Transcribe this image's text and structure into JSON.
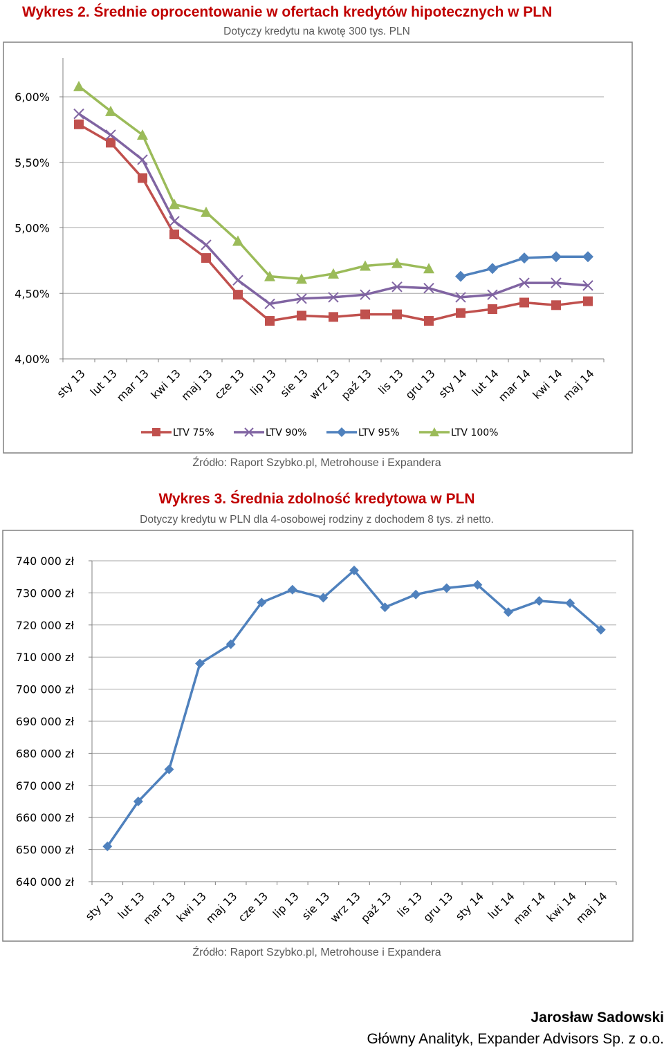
{
  "charts": [
    {
      "title": "Wykres 2. Średnie oprocentowanie w ofertach kredytów hipotecznych w PLN",
      "subtitle": "Dotyczy kredytu na kwotę 300 tys. PLN",
      "source": "Źródło: Raport Szybko.pl, Metrohouse i Expandera"
    },
    {
      "title": "Wykres 3. Średnia zdolność kredytowa w PLN",
      "subtitle": "Dotyczy kredytu w PLN dla 4-osobowej rodziny z dochodem 8 tys. zł netto.",
      "source": "Źródło: Raport Szybko.pl, Metrohouse i Expandera"
    }
  ],
  "author": {
    "name": "Jarosław Sadowski",
    "role": "Główny Analityk, Expander Advisors Sp. z o.o."
  },
  "chart_data": [
    {
      "type": "line",
      "title": "Wykres 2. Średnie oprocentowanie w ofertach kredytów hipotecznych w PLN",
      "subtitle": "Dotyczy kredytu na kwotę 300 tys. PLN",
      "categories": [
        "sty 13",
        "lut 13",
        "mar 13",
        "kwi 13",
        "maj 13",
        "cze 13",
        "lip 13",
        "sie 13",
        "wrz 13",
        "paź 13",
        "lis 13",
        "gru 13",
        "sty 14",
        "lut 14",
        "mar 14",
        "kwi 14",
        "maj 14"
      ],
      "ylim": [
        4.0,
        6.0
      ],
      "yticks": [
        4.0,
        4.5,
        5.0,
        5.5,
        6.0
      ],
      "ytick_labels": [
        "4,00%",
        "4,50%",
        "5,00%",
        "5,50%",
        "6,00%"
      ],
      "grid": true,
      "legend": "bottom",
      "series": [
        {
          "name": "LTV 75%",
          "color": "#c0504d",
          "marker": "square",
          "values": [
            5.79,
            5.65,
            5.38,
            4.95,
            4.77,
            4.49,
            4.29,
            4.33,
            4.32,
            4.34,
            4.34,
            4.29,
            4.35,
            4.38,
            4.43,
            4.41,
            4.44
          ]
        },
        {
          "name": "LTV 90%",
          "color": "#8064a2",
          "marker": "x",
          "values": [
            5.87,
            5.71,
            5.52,
            5.05,
            4.87,
            4.6,
            4.42,
            4.46,
            4.47,
            4.49,
            4.55,
            4.54,
            4.47,
            4.49,
            4.58,
            4.58,
            4.56
          ]
        },
        {
          "name": "LTV 95%",
          "color": "#4f81bd",
          "marker": "diamond",
          "values": [
            null,
            null,
            null,
            null,
            null,
            null,
            null,
            null,
            null,
            null,
            null,
            null,
            4.63,
            4.69,
            4.77,
            4.78,
            4.78
          ]
        },
        {
          "name": "LTV 100%",
          "color": "#9bbb59",
          "marker": "triangle",
          "values": [
            6.08,
            5.89,
            5.71,
            5.18,
            5.12,
            4.9,
            4.63,
            4.61,
            4.65,
            4.71,
            4.73,
            4.69,
            null,
            null,
            null,
            null,
            null
          ]
        }
      ]
    },
    {
      "type": "line",
      "title": "Wykres 3. Średnia zdolność kredytowa w PLN",
      "subtitle": "Dotyczy kredytu w PLN dla 4-osobowej rodziny z dochodem 8 tys. zł netto.",
      "categories": [
        "sty 13",
        "lut 13",
        "mar 13",
        "kwi 13",
        "maj 13",
        "cze 13",
        "lip 13",
        "sie 13",
        "wrz 13",
        "paź 13",
        "lis 13",
        "gru 13",
        "sty 14",
        "lut 14",
        "mar 14",
        "kwi 14",
        "maj 14"
      ],
      "ylim": [
        640000,
        740000
      ],
      "yticks": [
        640000,
        650000,
        660000,
        670000,
        680000,
        690000,
        700000,
        710000,
        720000,
        730000,
        740000
      ],
      "ytick_labels": [
        "640 000 zł",
        "650 000 zł",
        "660 000 zł",
        "670 000 zł",
        "680 000 zł",
        "690 000 zł",
        "700 000 zł",
        "710 000 zł",
        "720 000 zł",
        "730 000 zł",
        "740 000 zł"
      ],
      "grid": true,
      "legend": "none",
      "series": [
        {
          "color": "#4f81bd",
          "marker": "diamond",
          "values": [
            651000,
            665000,
            675000,
            708000,
            714000,
            727000,
            731000,
            728500,
            737000,
            725500,
            729500,
            731500,
            732500,
            724000,
            727500,
            726800,
            718500
          ]
        }
      ]
    }
  ]
}
